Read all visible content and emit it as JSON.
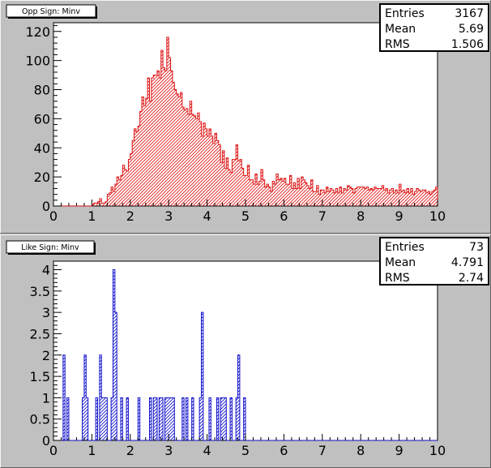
{
  "canvas": {
    "background": "#c0c0c0",
    "frame_light": "#f4f4f4",
    "frame_dark": "#606060"
  },
  "chart_data": [
    {
      "type": "bar",
      "title": "Opp Sign: Minv",
      "xlabel": "",
      "ylabel": "",
      "xlim": [
        0,
        10
      ],
      "ylim": [
        0,
        126
      ],
      "x_ticks": [
        0,
        1,
        2,
        3,
        4,
        5,
        6,
        7,
        8,
        9,
        10
      ],
      "y_ticks": [
        0,
        20,
        40,
        60,
        80,
        100,
        120
      ],
      "bin_width": 0.1,
      "color": "#dd1111",
      "fill": "hatched",
      "grid": false,
      "legend": "none",
      "stats": {
        "position": "top-right",
        "entries_label": "Entries",
        "entries": "3167",
        "mean_label": "Mean",
        "mean": "5.69",
        "rms_label": "RMS",
        "rms": "1.506"
      },
      "series": [
        {
          "values": [
            0,
            0,
            0,
            0,
            0,
            0,
            0,
            0,
            0,
            0,
            0,
            0,
            0,
            0,
            0,
            0,
            0,
            0,
            0,
            0,
            1,
            2,
            2,
            3,
            5,
            2,
            2,
            3,
            8,
            9,
            13,
            10,
            15,
            20,
            18,
            21,
            28,
            25,
            24,
            32,
            36,
            45,
            53,
            51,
            55,
            65,
            75,
            69,
            74,
            88,
            72,
            88,
            90,
            90,
            93,
            88,
            107,
            95,
            93,
            116,
            102,
            93,
            85,
            80,
            77,
            75,
            78,
            68,
            66,
            67,
            63,
            72,
            63,
            62,
            60,
            64,
            58,
            48,
            57,
            53,
            48,
            53,
            48,
            43,
            50,
            45,
            42,
            30,
            38,
            26,
            33,
            25,
            23,
            32,
            32,
            42,
            31,
            32,
            26,
            21,
            21,
            28,
            18,
            18,
            15,
            22,
            15,
            17,
            25,
            18,
            13,
            15,
            13,
            10,
            17,
            15,
            22,
            18,
            19,
            17,
            19,
            15,
            15,
            21,
            12,
            16,
            12,
            19,
            12,
            20,
            18,
            16,
            14,
            12,
            18,
            10,
            10,
            14,
            8,
            11,
            11,
            9,
            13,
            10,
            12,
            11,
            9,
            12,
            9,
            13,
            9,
            12,
            11,
            14,
            13,
            12,
            9,
            12,
            13,
            13,
            13,
            13,
            12,
            13,
            11,
            12,
            11,
            13,
            12,
            12,
            12,
            14,
            11,
            12,
            9,
            11,
            12,
            9,
            11,
            9,
            15,
            10,
            11,
            9,
            12,
            9,
            12,
            8,
            10,
            12,
            11,
            10,
            11,
            11,
            9,
            10,
            8,
            10,
            11,
            13
          ]
        }
      ]
    },
    {
      "type": "bar",
      "title": "Like Sign: Minv",
      "xlabel": "",
      "ylabel": "",
      "xlim": [
        0,
        10
      ],
      "ylim": [
        0,
        4.2
      ],
      "x_ticks": [
        0,
        1,
        2,
        3,
        4,
        5,
        6,
        7,
        8,
        9,
        10
      ],
      "y_ticks": [
        0,
        0.5,
        1,
        1.5,
        2,
        2.5,
        3,
        3.5,
        4
      ],
      "bin_width": 0.1,
      "color": "#1111cc",
      "fill": "hatched",
      "grid": false,
      "legend": "none",
      "stats": {
        "position": "top-right",
        "entries_label": "Entries",
        "entries": "73",
        "mean_label": "Mean",
        "mean": "4.791",
        "rms_label": "RMS",
        "rms": "2.74"
      },
      "series": [
        {
          "values": [
            0,
            0,
            0,
            0,
            0,
            2,
            0,
            1,
            0,
            0,
            0,
            0,
            0,
            0,
            0,
            1,
            2,
            1,
            0,
            0,
            0,
            0,
            1,
            0,
            2,
            1,
            1,
            1,
            0,
            0,
            1,
            4,
            3,
            0,
            0,
            1,
            0,
            0,
            1,
            0,
            0,
            0,
            0,
            0,
            1,
            0,
            0,
            0,
            0,
            0,
            1,
            0,
            1,
            1,
            0,
            1,
            1,
            0,
            1,
            1,
            1,
            1,
            1,
            0,
            0,
            0,
            0,
            1,
            0,
            1,
            0,
            0,
            1,
            0,
            0,
            0,
            1,
            3,
            0,
            0,
            0,
            1,
            0,
            0,
            0,
            1,
            0,
            1,
            1,
            1,
            0,
            0,
            1,
            0,
            0,
            1,
            2,
            0,
            0,
            1,
            0,
            0,
            0,
            0,
            0,
            0,
            0,
            0,
            0,
            0,
            0,
            0,
            0,
            0,
            0,
            0,
            0,
            0,
            0,
            0,
            0,
            0,
            0,
            0,
            0,
            0,
            0,
            0,
            0,
            0,
            0,
            0,
            0,
            0,
            0,
            0,
            0,
            0,
            0,
            0,
            0,
            0,
            0,
            0,
            0,
            0,
            0,
            0,
            0,
            0,
            0,
            0,
            0,
            0,
            0,
            0,
            0,
            0,
            0,
            0,
            0,
            0,
            0,
            0,
            0,
            0,
            0,
            0,
            0,
            0,
            0,
            0,
            0,
            0,
            0,
            0,
            0,
            0,
            0,
            0,
            0,
            0,
            0,
            0,
            0,
            0,
            0,
            0,
            0,
            0,
            0,
            0,
            0,
            0,
            0,
            0,
            0,
            0,
            0,
            0
          ]
        }
      ]
    }
  ]
}
